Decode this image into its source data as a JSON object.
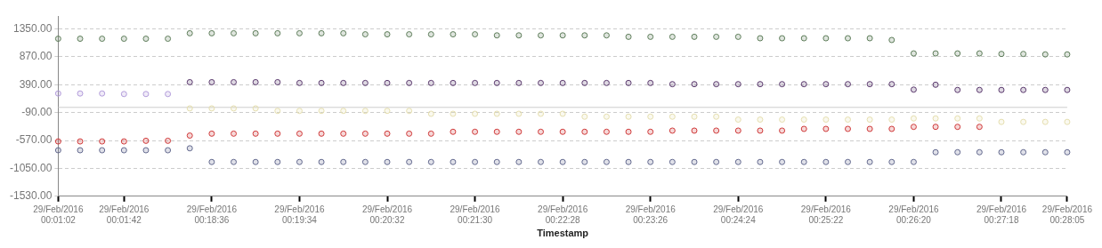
{
  "chart_data": {
    "type": "scatter",
    "xlabel": "Timestamp",
    "categories": [
      "29/Feb/2016\n00:01:02",
      null,
      null,
      "29/Feb/2016\n00:01:42",
      null,
      null,
      null,
      "29/Feb/2016\n00:18:36",
      null,
      null,
      null,
      "29/Feb/2016\n00:19:34",
      null,
      null,
      null,
      "29/Feb/2016\n00:20:32",
      null,
      null,
      null,
      "29/Feb/2016\n00:21:30",
      null,
      null,
      null,
      "29/Feb/2016\n00:22:28",
      null,
      null,
      null,
      "29/Feb/2016\n00:23:26",
      null,
      null,
      null,
      "29/Feb/2016\n00:24:24",
      null,
      null,
      null,
      "29/Feb/2016\n00:25:22",
      null,
      null,
      null,
      "29/Feb/2016\n00:26:20",
      null,
      null,
      null,
      "29/Feb/2016\n00:27:18",
      null,
      null,
      "29/Feb/2016\n00:28:05"
    ],
    "series": [
      {
        "color": "#5e7d5a",
        "values": [
          1182,
          1182,
          1182,
          1182,
          1182,
          1182,
          1276,
          1276,
          1276,
          1276,
          1276,
          1276,
          1276,
          1276,
          1258,
          1258,
          1258,
          1258,
          1258,
          1258,
          1240,
          1240,
          1240,
          1240,
          1240,
          1240,
          1215,
          1215,
          1215,
          1215,
          1215,
          1215,
          1190,
          1190,
          1190,
          1190,
          1190,
          1190,
          1160,
          929,
          929,
          929,
          929,
          920,
          920,
          912,
          912
        ]
      },
      {
        "color": "#5b3a6e",
        "values": [
          null,
          null,
          null,
          null,
          null,
          null,
          434,
          434,
          434,
          434,
          434,
          420,
          420,
          420,
          420,
          420,
          420,
          420,
          420,
          420,
          420,
          420,
          420,
          420,
          420,
          420,
          420,
          420,
          400,
          400,
          400,
          400,
          400,
          400,
          400,
          400,
          400,
          400,
          400,
          306,
          390,
          300,
          300,
          300,
          300,
          300,
          300
        ]
      },
      {
        "color": "#b39ddb",
        "values": [
          239,
          239,
          239,
          230,
          230,
          230,
          null,
          null,
          null,
          null,
          null,
          null,
          null,
          null,
          null,
          null,
          null,
          null,
          null,
          null,
          null,
          null,
          null,
          null,
          null,
          null,
          null,
          null,
          null,
          null,
          null,
          null,
          null,
          null,
          null,
          null,
          null,
          null,
          null,
          null,
          null,
          null,
          null,
          null,
          null,
          null,
          null
        ]
      },
      {
        "color": "#e6dfb0",
        "values": [
          null,
          null,
          null,
          null,
          null,
          null,
          -17,
          -17,
          -17,
          -17,
          -60,
          -60,
          -60,
          -60,
          -60,
          -60,
          -60,
          -110,
          -110,
          -110,
          -110,
          -110,
          -110,
          -110,
          -160,
          -160,
          -160,
          -160,
          -160,
          -160,
          -160,
          -210,
          -210,
          -210,
          -210,
          -210,
          -210,
          -210,
          -210,
          -190,
          -190,
          -190,
          -190,
          -250,
          -250,
          -250,
          -250
        ]
      },
      {
        "color": "#d03a3a",
        "values": [
          -586,
          -586,
          -586,
          -586,
          -575,
          -575,
          -485,
          -452,
          -452,
          -452,
          -452,
          -452,
          -452,
          -452,
          -452,
          -452,
          -452,
          -452,
          -420,
          -420,
          -420,
          -420,
          -420,
          -420,
          -420,
          -420,
          -420,
          -420,
          -400,
          -400,
          -400,
          -400,
          -400,
          -400,
          -370,
          -370,
          -370,
          -370,
          -370,
          -335,
          -335,
          -335,
          -335,
          null,
          null,
          null,
          null
        ]
      },
      {
        "color": "#646a8f",
        "values": [
          -738,
          -738,
          -738,
          -738,
          -738,
          -738,
          -704,
          -940,
          -940,
          -940,
          -940,
          -940,
          -940,
          -940,
          -940,
          -940,
          -940,
          -940,
          -940,
          -940,
          -940,
          -940,
          -940,
          -940,
          -940,
          -940,
          -940,
          -940,
          -940,
          -940,
          -940,
          -940,
          -940,
          -940,
          -940,
          -940,
          -940,
          -940,
          -940,
          -940,
          -772,
          -772,
          -772,
          -772,
          -772,
          -772,
          -772
        ]
      }
    ],
    "ylim": [
      -1530,
      1570
    ],
    "yticks": [
      {
        "value": -1530,
        "label": "-1530.00"
      },
      {
        "value": -1050,
        "label": "-1050.00"
      },
      {
        "value": -570,
        "label": "-570.00"
      },
      {
        "value": -90,
        "label": "-90.00"
      },
      {
        "value": 390,
        "label": "390.00"
      },
      {
        "value": 870,
        "label": "870.00"
      },
      {
        "value": 1350,
        "label": "1350.00"
      }
    ],
    "ref_lines": [
      {
        "axis": "y",
        "value": 0,
        "color": "#cccccc",
        "line_style": "solid"
      }
    ],
    "grid": "y",
    "legend": false,
    "marker": "circle"
  }
}
